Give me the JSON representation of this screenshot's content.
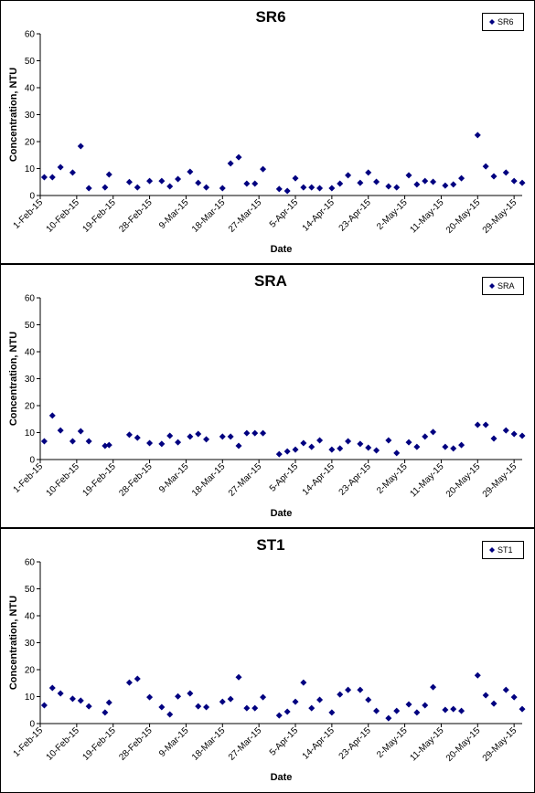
{
  "chart_data": [
    {
      "type": "scatter",
      "title": "SR6",
      "xlabel": "Date",
      "ylabel": "Concentration, NTU",
      "legend": "upper right",
      "x": [
        "2-Feb-15",
        "4-Feb-15",
        "6-Feb-15",
        "9-Feb-15",
        "11-Feb-15",
        "13-Feb-15",
        "17-Feb-15",
        "18-Feb-15",
        "23-Feb-15",
        "25-Feb-15",
        "28-Feb-15",
        "3-Mar-15",
        "5-Mar-15",
        "7-Mar-15",
        "10-Mar-15",
        "12-Mar-15",
        "14-Mar-15",
        "18-Mar-15",
        "20-Mar-15",
        "22-Mar-15",
        "24-Mar-15",
        "26-Mar-15",
        "28-Mar-15",
        "1-Apr-15",
        "3-Apr-15",
        "5-Apr-15",
        "7-Apr-15",
        "9-Apr-15",
        "11-Apr-15",
        "14-Apr-15",
        "16-Apr-15",
        "18-Apr-15",
        "21-Apr-15",
        "23-Apr-15",
        "25-Apr-15",
        "28-Apr-15",
        "30-Apr-15",
        "3-May-15",
        "5-May-15",
        "7-May-15",
        "9-May-15",
        "12-May-15",
        "14-May-15",
        "16-May-15",
        "20-May-15",
        "22-May-15",
        "24-May-15",
        "27-May-15",
        "29-May-15",
        "31-May-15"
      ],
      "series": [
        {
          "name": "SR6",
          "color": "#000080",
          "values": [
            6.8,
            6.8,
            10.5,
            8.5,
            18.3,
            2.7,
            3,
            7.8,
            5,
            3,
            5.4,
            5.4,
            3.4,
            6.1,
            8.8,
            4.7,
            3,
            2.7,
            11.9,
            14.2,
            4.4,
            4.4,
            9.8,
            2.4,
            1.7,
            6.4,
            3,
            3,
            2.7,
            2.7,
            4.4,
            7.5,
            4.7,
            8.5,
            5.1,
            3.4,
            3,
            7.5,
            4.1,
            5.4,
            5.1,
            3.7,
            4.1,
            6.4,
            22.4,
            10.8,
            7.1,
            8.5,
            5.4,
            4.7
          ]
        }
      ],
      "xlim": [
        "1-Feb-15",
        "31-May-15"
      ],
      "xticks": [
        "1-Feb-15",
        "10-Feb-15",
        "19-Feb-15",
        "28-Feb-15",
        "9-Mar-15",
        "18-Mar-15",
        "27-Mar-15",
        "5-Apr-15",
        "14-Apr-15",
        "23-Apr-15",
        "2-May-15",
        "11-May-15",
        "20-May-15",
        "29-May-15"
      ],
      "ylim": [
        0,
        60
      ],
      "yticks": [
        0,
        10,
        20,
        30,
        40,
        50,
        60
      ]
    },
    {
      "type": "scatter",
      "title": "SRA",
      "xlabel": "Date",
      "ylabel": "Concentration, NTU",
      "legend": "upper right",
      "x": [
        "2-Feb-15",
        "4-Feb-15",
        "6-Feb-15",
        "9-Feb-15",
        "11-Feb-15",
        "13-Feb-15",
        "17-Feb-15",
        "18-Feb-15",
        "23-Feb-15",
        "25-Feb-15",
        "28-Feb-15",
        "3-Mar-15",
        "5-Mar-15",
        "7-Mar-15",
        "10-Mar-15",
        "12-Mar-15",
        "14-Mar-15",
        "18-Mar-15",
        "20-Mar-15",
        "22-Mar-15",
        "24-Mar-15",
        "26-Mar-15",
        "28-Mar-15",
        "1-Apr-15",
        "3-Apr-15",
        "5-Apr-15",
        "7-Apr-15",
        "9-Apr-15",
        "11-Apr-15",
        "14-Apr-15",
        "16-Apr-15",
        "18-Apr-15",
        "21-Apr-15",
        "23-Apr-15",
        "25-Apr-15",
        "28-Apr-15",
        "30-Apr-15",
        "3-May-15",
        "5-May-15",
        "7-May-15",
        "9-May-15",
        "12-May-15",
        "14-May-15",
        "16-May-15",
        "20-May-15",
        "22-May-15",
        "24-May-15",
        "27-May-15",
        "29-May-15",
        "31-May-15"
      ],
      "series": [
        {
          "name": "SRA",
          "color": "#000080",
          "values": [
            6.8,
            16.3,
            10.8,
            6.8,
            10.5,
            6.8,
            5.1,
            5.4,
            9.2,
            8.1,
            6.1,
            5.8,
            8.8,
            6.4,
            8.5,
            9.5,
            7.5,
            8.5,
            8.5,
            5.1,
            9.8,
            9.8,
            9.8,
            2,
            3,
            3.7,
            6.1,
            4.7,
            7.1,
            3.7,
            4.1,
            6.8,
            5.8,
            4.4,
            3.4,
            7.1,
            2.4,
            6.4,
            4.7,
            8.5,
            10.2,
            4.7,
            4.1,
            5.4,
            12.9,
            12.9,
            7.8,
            10.8,
            9.5,
            8.8
          ]
        }
      ],
      "xlim": [
        "1-Feb-15",
        "31-May-15"
      ],
      "xticks": [
        "1-Feb-15",
        "10-Feb-15",
        "19-Feb-15",
        "28-Feb-15",
        "9-Mar-15",
        "18-Mar-15",
        "27-Mar-15",
        "5-Apr-15",
        "14-Apr-15",
        "23-Apr-15",
        "2-May-15",
        "11-May-15",
        "20-May-15",
        "29-May-15"
      ],
      "ylim": [
        0,
        60
      ],
      "yticks": [
        0,
        10,
        20,
        30,
        40,
        50,
        60
      ]
    },
    {
      "type": "scatter",
      "title": "ST1",
      "xlabel": "Date",
      "ylabel": "Concentration, NTU",
      "legend": "upper right",
      "x": [
        "2-Feb-15",
        "4-Feb-15",
        "6-Feb-15",
        "9-Feb-15",
        "11-Feb-15",
        "13-Feb-15",
        "17-Feb-15",
        "18-Feb-15",
        "23-Feb-15",
        "25-Feb-15",
        "28-Feb-15",
        "3-Mar-15",
        "5-Mar-15",
        "7-Mar-15",
        "10-Mar-15",
        "12-Mar-15",
        "14-Mar-15",
        "18-Mar-15",
        "20-Mar-15",
        "22-Mar-15",
        "24-Mar-15",
        "26-Mar-15",
        "28-Mar-15",
        "1-Apr-15",
        "3-Apr-15",
        "5-Apr-15",
        "7-Apr-15",
        "9-Apr-15",
        "11-Apr-15",
        "14-Apr-15",
        "16-Apr-15",
        "18-Apr-15",
        "21-Apr-15",
        "23-Apr-15",
        "25-Apr-15",
        "28-Apr-15",
        "30-Apr-15",
        "3-May-15",
        "5-May-15",
        "7-May-15",
        "9-May-15",
        "12-May-15",
        "14-May-15",
        "16-May-15",
        "20-May-15",
        "22-May-15",
        "24-May-15",
        "27-May-15",
        "29-May-15",
        "31-May-15"
      ],
      "series": [
        {
          "name": "ST1",
          "color": "#000080",
          "values": [
            6.8,
            13.2,
            11.2,
            9.2,
            8.5,
            6.4,
            4.1,
            7.8,
            15.2,
            16.6,
            9.8,
            6.1,
            3.4,
            10.1,
            11.2,
            6.4,
            6.1,
            8.1,
            9.1,
            17.2,
            5.7,
            5.7,
            9.8,
            3,
            4.4,
            8.1,
            15.2,
            5.7,
            8.8,
            4.1,
            10.8,
            12.5,
            12.5,
            8.8,
            4.7,
            2,
            4.7,
            7.1,
            4.1,
            6.8,
            13.5,
            5.1,
            5.4,
            4.7,
            17.9,
            10.5,
            7.4,
            12.5,
            9.8,
            5.4
          ]
        }
      ],
      "xlim": [
        "1-Feb-15",
        "31-May-15"
      ],
      "xticks": [
        "1-Feb-15",
        "10-Feb-15",
        "19-Feb-15",
        "28-Feb-15",
        "9-Mar-15",
        "18-Mar-15",
        "27-Mar-15",
        "5-Apr-15",
        "14-Apr-15",
        "23-Apr-15",
        "2-May-15",
        "11-May-15",
        "20-May-15",
        "29-May-15"
      ],
      "ylim": [
        0,
        60
      ],
      "yticks": [
        0,
        10,
        20,
        30,
        40,
        50,
        60
      ]
    }
  ]
}
